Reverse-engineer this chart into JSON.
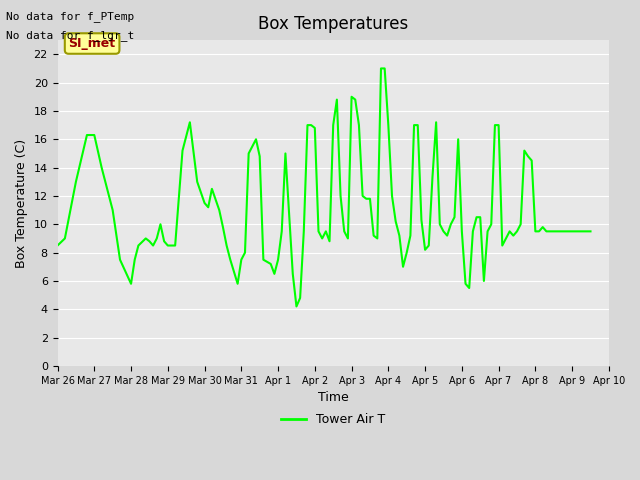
{
  "title": "Box Temperatures",
  "xlabel": "Time",
  "ylabel": "Box Temperature (C)",
  "ylim": [
    0,
    23
  ],
  "yticks": [
    0,
    2,
    4,
    6,
    8,
    10,
    12,
    14,
    16,
    18,
    20,
    22
  ],
  "line_color": "#00FF00",
  "line_width": 1.5,
  "fig_bg_color": "#D8D8D8",
  "plot_bg_color": "#E8E8E8",
  "grid_color": "#FFFFFF",
  "no_data_text1": "No data for f_PTemp",
  "no_data_text2": "No data for f_lgr_t",
  "badge_text": "SI_met",
  "badge_color": "#FFFF99",
  "badge_border_color": "#999900",
  "badge_text_color": "#990000",
  "legend_label": "Tower Air T",
  "tick_labels": [
    "Mar 26",
    "Mar 27",
    "Mar 28",
    "Mar 29",
    "Mar 30",
    "Mar 31",
    "Apr 1",
    "Apr 2",
    "Apr 3",
    "Apr 4",
    "Apr 5",
    "Apr 6",
    "Apr 7",
    "Apr 8",
    "Apr 9",
    "Apr 10"
  ],
  "data_x_days": [
    0.0,
    0.2,
    0.5,
    0.8,
    1.0,
    1.2,
    1.5,
    1.7,
    2.0,
    2.1,
    2.2,
    2.4,
    2.5,
    2.6,
    2.7,
    2.8,
    2.9,
    3.0,
    3.2,
    3.4,
    3.6,
    3.8,
    4.0,
    4.1,
    4.2,
    4.4,
    4.5,
    4.6,
    4.7,
    4.9,
    5.0,
    5.1,
    5.2,
    5.4,
    5.5,
    5.6,
    5.8,
    5.9,
    6.0,
    6.1,
    6.2,
    6.4,
    6.5,
    6.6,
    6.7,
    6.8,
    6.9,
    7.0,
    7.1,
    7.2,
    7.3,
    7.4,
    7.5,
    7.6,
    7.7,
    7.8,
    7.9,
    8.0,
    8.1,
    8.2,
    8.3,
    8.4,
    8.5,
    8.6,
    8.7,
    8.8,
    8.9,
    9.0,
    9.1,
    9.2,
    9.3,
    9.4,
    9.5,
    9.6,
    9.7,
    9.8,
    9.9,
    10.0,
    10.1,
    10.2,
    10.3,
    10.4,
    10.5,
    10.6,
    10.7,
    10.8,
    10.9,
    11.0,
    11.1,
    11.2,
    11.3,
    11.4,
    11.5,
    11.6,
    11.7,
    11.8,
    11.9,
    12.0,
    12.1,
    12.2,
    12.3,
    12.4,
    12.5,
    12.6,
    12.7,
    12.8,
    12.9,
    13.0,
    13.1,
    13.2,
    13.3,
    13.4,
    13.5,
    13.6,
    13.7,
    13.8,
    13.9,
    14.0,
    14.1,
    14.2,
    14.3,
    14.4,
    14.5
  ],
  "data_y": [
    8.5,
    9.0,
    13.0,
    16.3,
    16.3,
    14.0,
    11.0,
    7.5,
    5.8,
    7.5,
    8.5,
    9.0,
    8.8,
    8.5,
    9.0,
    10.0,
    8.8,
    8.5,
    8.5,
    15.2,
    17.2,
    13.0,
    11.5,
    11.2,
    12.5,
    11.0,
    9.8,
    8.5,
    7.5,
    5.8,
    7.5,
    8.0,
    15.0,
    16.0,
    14.8,
    7.5,
    7.2,
    6.5,
    7.5,
    9.5,
    15.0,
    6.5,
    4.2,
    4.8,
    9.5,
    17.0,
    17.0,
    16.8,
    9.5,
    9.0,
    9.5,
    8.8,
    17.0,
    18.8,
    12.0,
    9.5,
    9.0,
    19.0,
    18.8,
    17.0,
    12.0,
    11.8,
    11.8,
    9.2,
    9.0,
    21.0,
    21.0,
    17.0,
    12.0,
    10.2,
    9.2,
    7.0,
    8.0,
    9.2,
    17.0,
    17.0,
    10.3,
    8.2,
    8.5,
    13.3,
    17.2,
    10.0,
    9.5,
    9.2,
    10.0,
    10.5,
    16.0,
    9.5,
    5.8,
    5.5,
    9.5,
    10.5,
    10.5,
    6.0,
    9.5,
    10.0,
    17.0,
    17.0,
    8.5,
    9.0,
    9.5,
    9.2,
    9.5,
    10.0,
    15.2,
    14.8,
    14.5,
    9.5,
    9.5,
    9.8,
    9.5,
    9.5,
    9.5,
    9.5,
    9.5,
    9.5,
    9.5,
    9.5,
    9.5,
    9.5,
    9.5,
    9.5,
    9.5
  ]
}
